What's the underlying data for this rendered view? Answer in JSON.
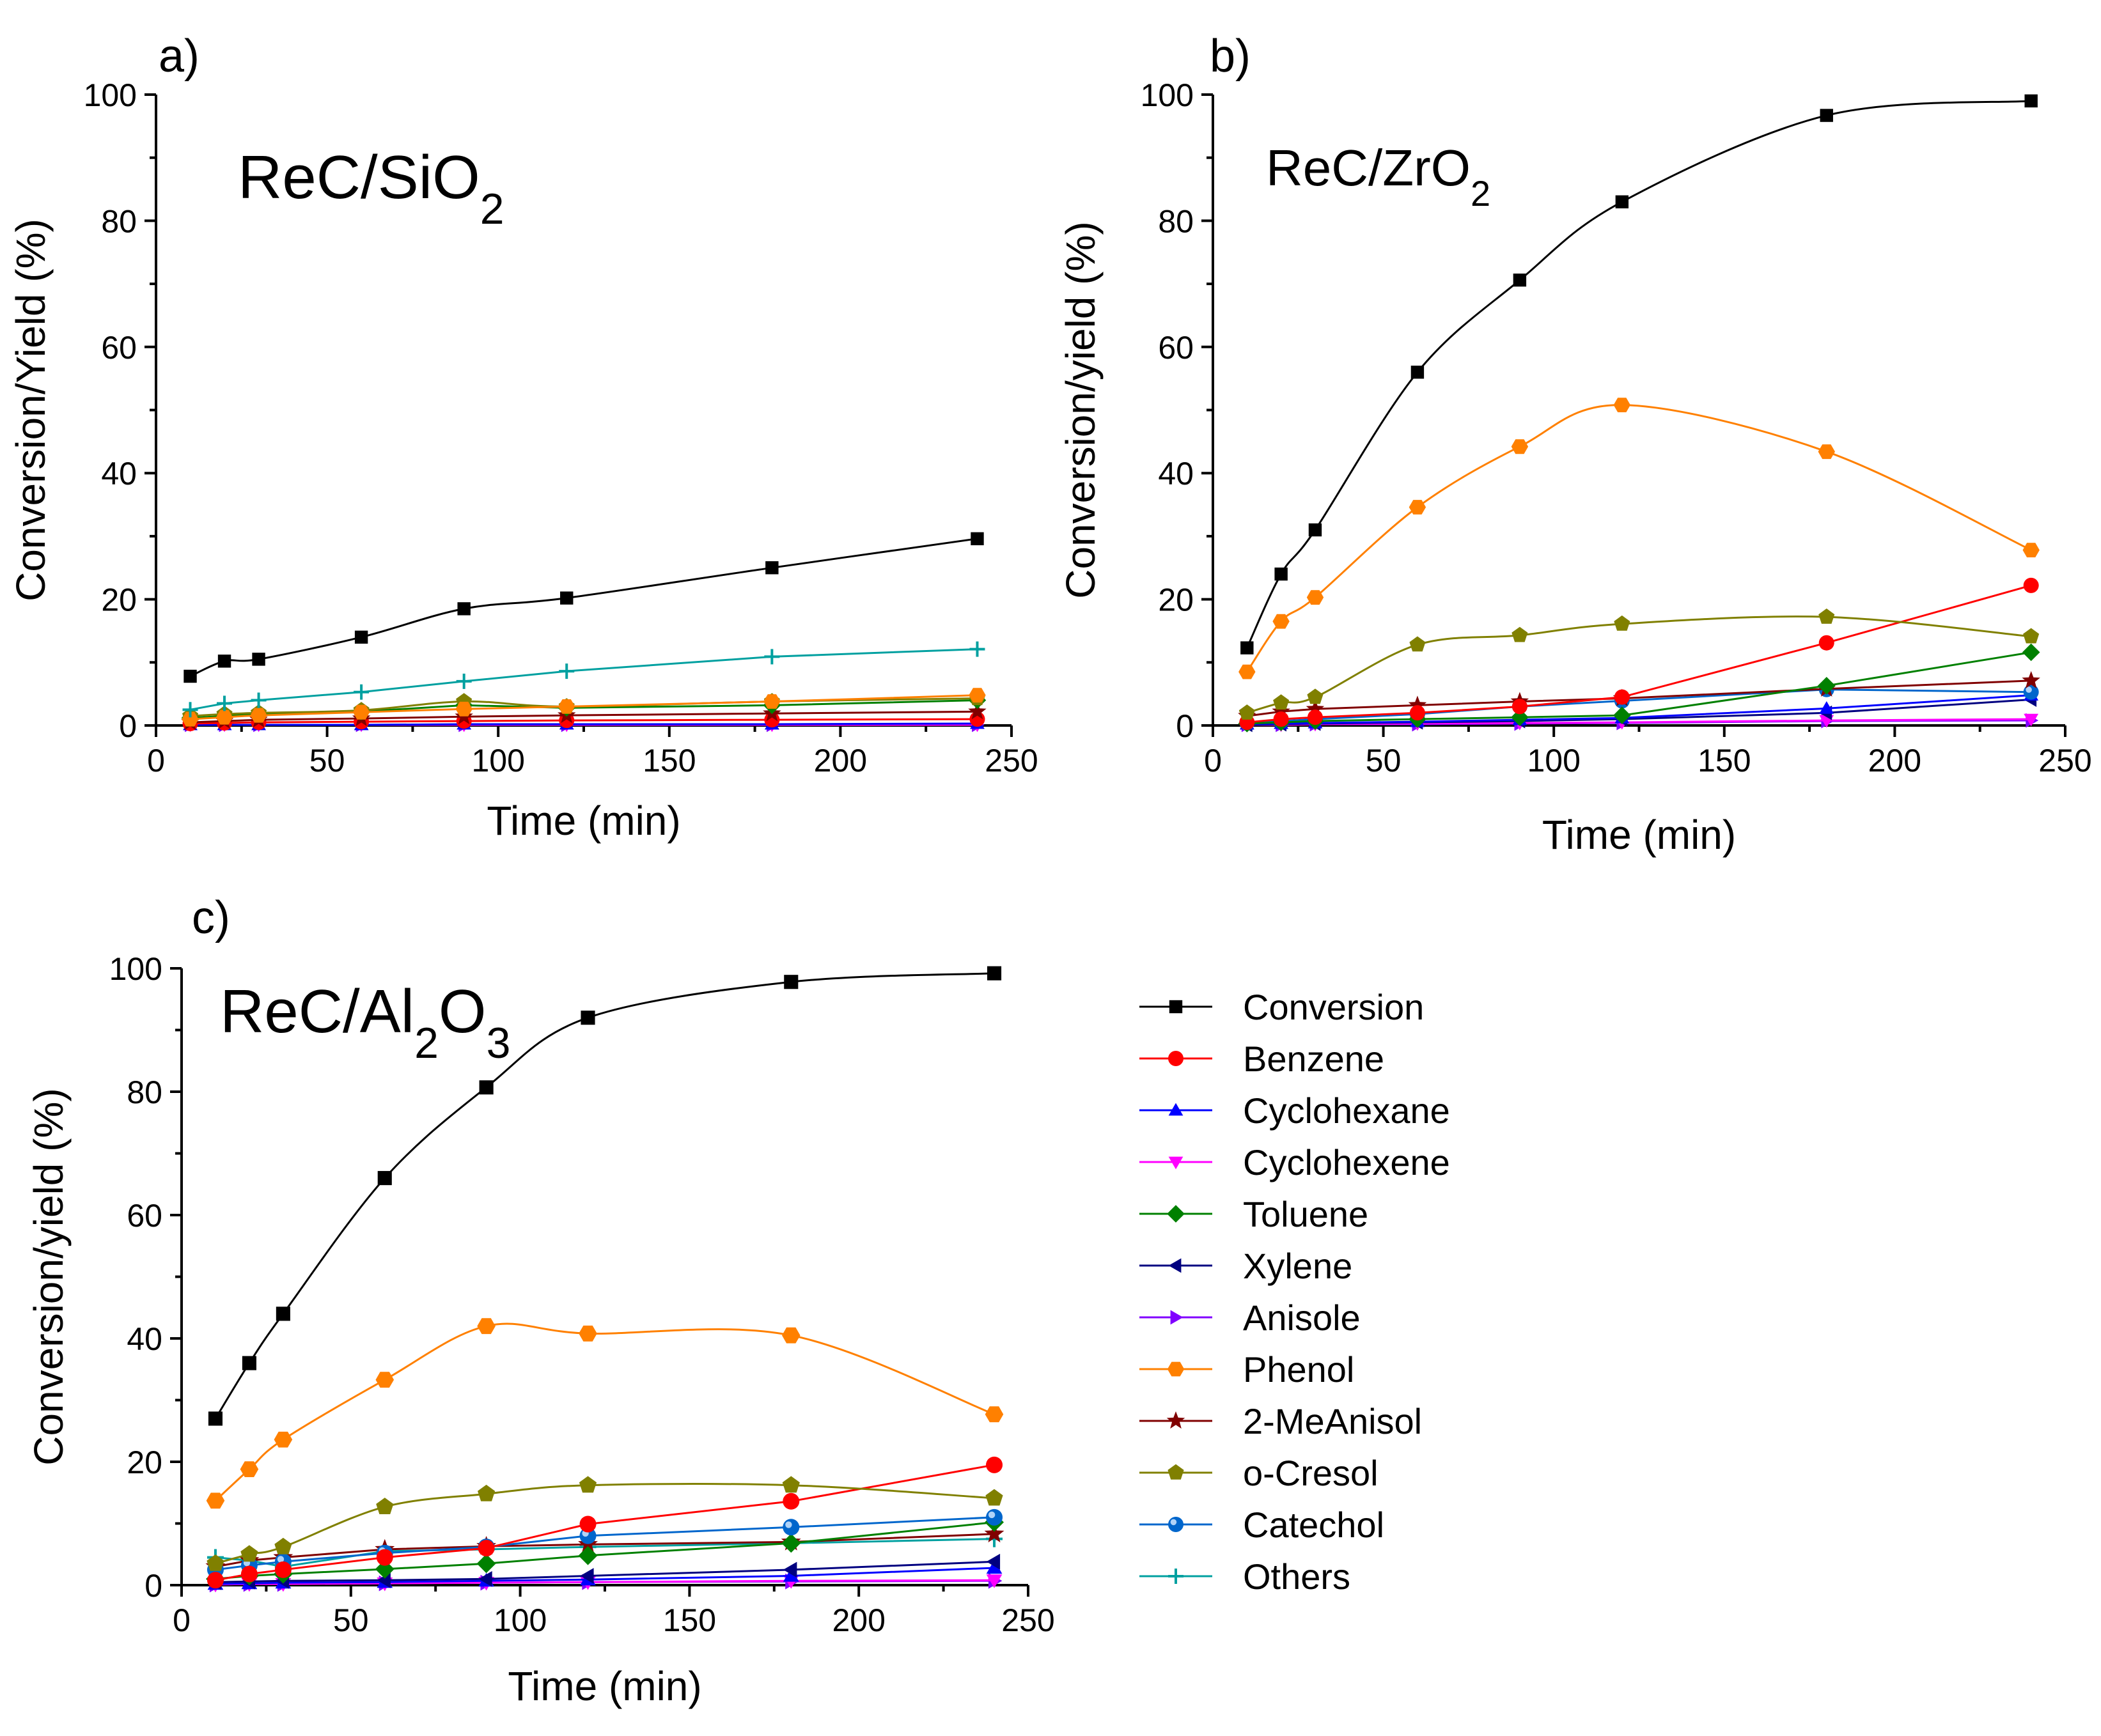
{
  "colors": {
    "Conversion": "#000000",
    "Benzene": "#ff0000",
    "Cyclohexane": "#0000ff",
    "Cyclohexene": "#ff00ff",
    "Toluene": "#008000",
    "Xylene": "#000080",
    "Anisole": "#8000ff",
    "Phenol": "#ff8000",
    "2-MeAnisol": "#800000",
    "o-Cresol": "#808000",
    "Catechol": "#0066cc",
    "Others": "#00a0a0"
  },
  "legend": [
    "Conversion",
    "Benzene",
    "Cyclohexane",
    "Cyclohexene",
    "Toluene",
    "Xylene",
    "Anisole",
    "Phenol",
    "2-MeAnisol",
    "o-Cresol",
    "Catechol",
    "Others"
  ],
  "chart_data": [
    {
      "type": "line",
      "panel": "a)",
      "catalyst": {
        "main": "ReC/SiO",
        "sub": "2",
        "tail": ""
      },
      "xlabel": "Time (min)",
      "ylabel": "Conversion/Yield (%)",
      "xlim": [
        0,
        250
      ],
      "ylim": [
        0,
        100
      ],
      "xticks": [
        0,
        50,
        100,
        150,
        200,
        250
      ],
      "yticks": [
        0,
        20,
        40,
        60,
        80,
        100
      ],
      "x": [
        10,
        20,
        30,
        60,
        90,
        120,
        180,
        240
      ],
      "series": [
        {
          "name": "Conversion",
          "values": [
            7.8,
            10.2,
            10.5,
            14,
            18.5,
            20.2,
            25,
            29.6
          ]
        },
        {
          "name": "Others",
          "values": [
            2.5,
            3.5,
            4,
            5.3,
            7,
            8.6,
            10.9,
            12.1
          ]
        },
        {
          "name": "Phenol",
          "values": [
            1.0,
            1.3,
            1.6,
            2.1,
            2.6,
            3.0,
            3.8,
            4.8
          ]
        },
        {
          "name": "o-Cresol",
          "values": [
            1.5,
            1.8,
            2.0,
            2.4,
            3.8,
            3.0,
            3.8,
            4.3
          ]
        },
        {
          "name": "Toluene",
          "values": [
            1.2,
            1.5,
            1.8,
            2.2,
            3.2,
            2.8,
            3.2,
            4.0
          ]
        },
        {
          "name": "2-MeAnisol",
          "values": [
            0.5,
            0.7,
            0.9,
            1.1,
            1.4,
            1.6,
            1.9,
            2.2
          ]
        },
        {
          "name": "Benzene",
          "values": [
            0.3,
            0.4,
            0.5,
            0.6,
            0.7,
            0.8,
            0.9,
            1.0
          ]
        },
        {
          "name": "Cyclohexane",
          "values": [
            0.1,
            0.1,
            0.1,
            0.1,
            0.2,
            0.2,
            0.2,
            0.3
          ]
        },
        {
          "name": "Cyclohexene",
          "values": [
            0.1,
            0.1,
            0.1,
            0.1,
            0.1,
            0.1,
            0.1,
            0.1
          ]
        },
        {
          "name": "Anisole",
          "values": [
            0.1,
            0.1,
            0.1,
            0.1,
            0.1,
            0.1,
            0.1,
            0.1
          ]
        }
      ]
    },
    {
      "type": "line",
      "panel": "b)",
      "catalyst": {
        "main": "ReC/ZrO",
        "sub": "2",
        "tail": ""
      },
      "xlabel": "Time (min)",
      "ylabel": "Conversion/yield (%)",
      "xlim": [
        0,
        250
      ],
      "ylim": [
        0,
        100
      ],
      "xticks": [
        0,
        50,
        100,
        150,
        200,
        250
      ],
      "yticks": [
        0,
        20,
        40,
        60,
        80,
        100
      ],
      "x": [
        10,
        20,
        30,
        60,
        90,
        120,
        180,
        240
      ],
      "series": [
        {
          "name": "Conversion",
          "values": [
            12.3,
            24,
            31,
            56,
            70.6,
            83,
            96.7,
            99
          ]
        },
        {
          "name": "Phenol",
          "values": [
            8.5,
            16.5,
            20.3,
            34.6,
            44.2,
            50.8,
            43.4,
            27.8
          ]
        },
        {
          "name": "o-Cresol",
          "values": [
            2.0,
            3.6,
            4.5,
            12.8,
            14.3,
            16.1,
            17.2,
            14.1
          ]
        },
        {
          "name": "Benzene",
          "values": [
            0.5,
            1.0,
            1.3,
            2.0,
            3.0,
            4.5,
            13.1,
            22.2
          ]
        },
        {
          "name": "Toluene",
          "values": [
            0.3,
            0.5,
            0.7,
            1.0,
            1.3,
            1.6,
            6.3,
            11.6
          ]
        },
        {
          "name": "2-MeAnisol",
          "values": [
            1.5,
            2.2,
            2.6,
            3.2,
            3.8,
            4.3,
            5.8,
            7.1
          ]
        },
        {
          "name": "Catechol",
          "values": [
            0.4,
            0.7,
            1.0,
            1.8,
            3.0,
            3.9,
            5.7,
            5.3
          ]
        },
        {
          "name": "Cyclohexane",
          "values": [
            0.2,
            0.3,
            0.4,
            0.6,
            0.9,
            1.2,
            2.7,
            4.8
          ]
        },
        {
          "name": "Xylene",
          "values": [
            0.1,
            0.2,
            0.3,
            0.5,
            0.7,
            1.0,
            2.0,
            4.1
          ]
        },
        {
          "name": "Cyclohexene",
          "values": [
            0.1,
            0.1,
            0.2,
            0.3,
            0.4,
            0.5,
            0.8,
            1.0
          ]
        },
        {
          "name": "Anisole",
          "values": [
            0.1,
            0.1,
            0.2,
            0.2,
            0.3,
            0.4,
            0.7,
            0.8
          ]
        }
      ]
    },
    {
      "type": "line",
      "panel": "c)",
      "catalyst": {
        "main": "ReC/Al",
        "sub": "2",
        "tail": "O",
        "sub2": "3"
      },
      "xlabel": "Time (min)",
      "ylabel": "Conversion/yield (%)",
      "xlim": [
        0,
        250
      ],
      "ylim": [
        0,
        100
      ],
      "xticks": [
        0,
        50,
        100,
        150,
        200,
        250
      ],
      "yticks": [
        0,
        20,
        40,
        60,
        80,
        100
      ],
      "x": [
        10,
        20,
        30,
        60,
        90,
        120,
        180,
        240
      ],
      "series": [
        {
          "name": "Conversion",
          "values": [
            27,
            36,
            44,
            66,
            80.7,
            92,
            97.8,
            99.2
          ]
        },
        {
          "name": "Phenol",
          "values": [
            13.7,
            18.8,
            23.6,
            33.3,
            42,
            40.8,
            40.5,
            27.7
          ]
        },
        {
          "name": "o-Cresol",
          "values": [
            3.5,
            5.0,
            6.2,
            12.7,
            14.8,
            16.2,
            16.2,
            14.1
          ]
        },
        {
          "name": "Benzene",
          "values": [
            0.8,
            1.8,
            2.5,
            4.5,
            6.0,
            9.9,
            13.6,
            19.5
          ]
        },
        {
          "name": "Catechol",
          "values": [
            2.5,
            3.2,
            3.8,
            5.2,
            6.2,
            8.0,
            9.4,
            11.0
          ]
        },
        {
          "name": "Toluene",
          "values": [
            1.0,
            1.5,
            1.8,
            2.6,
            3.5,
            4.8,
            6.8,
            10.2
          ]
        },
        {
          "name": "2-MeAnisol",
          "values": [
            3.0,
            4.0,
            4.5,
            5.8,
            6.3,
            6.6,
            7.0,
            8.3
          ]
        },
        {
          "name": "Others",
          "values": [
            4.5,
            4.0,
            3.0,
            5.5,
            5.8,
            6.2,
            6.8,
            7.5
          ]
        },
        {
          "name": "Xylene",
          "values": [
            0.5,
            0.6,
            0.7,
            0.8,
            1.0,
            1.5,
            2.5,
            3.8
          ]
        },
        {
          "name": "Cyclohexane",
          "values": [
            0.2,
            0.3,
            0.4,
            0.5,
            0.7,
            0.9,
            1.5,
            2.8
          ]
        },
        {
          "name": "Cyclohexene",
          "values": [
            0.1,
            0.2,
            0.2,
            0.3,
            0.4,
            0.5,
            0.7,
            0.8
          ]
        },
        {
          "name": "Anisole",
          "values": [
            0.1,
            0.2,
            0.2,
            0.3,
            0.4,
            0.5,
            0.6,
            0.7
          ]
        }
      ]
    }
  ]
}
